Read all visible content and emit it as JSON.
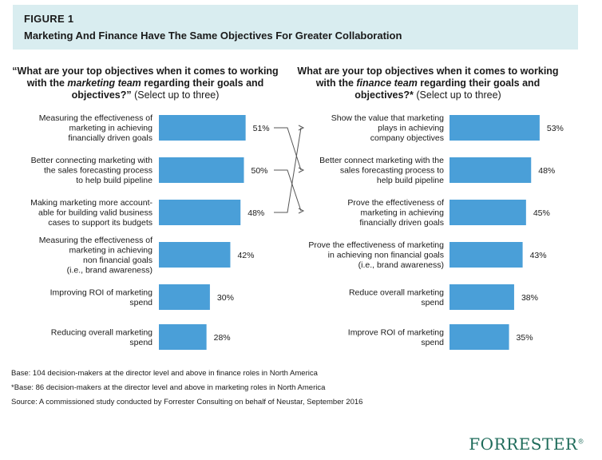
{
  "figure_label": "FIGURE 1",
  "figure_title": "Marketing And Finance Have The Same Objectives For Greater Collaboration",
  "colors": {
    "bar": "#4a9fd8",
    "header_bg": "#d9edf0",
    "logo": "#1e6b5a"
  },
  "left_question": {
    "part1": "“What are your top objectives when it comes to working with the ",
    "emph": "marketing team",
    "part2": " regarding their goals and objectives?”",
    "select": " (Select up to three)"
  },
  "right_question": {
    "part1": "What are your top objectives when it comes to working with the ",
    "emph": "finance team",
    "part2": " regarding their goals and objectives?*",
    "select": " (Select up to three)"
  },
  "chart_data": [
    {
      "type": "bar",
      "orientation": "horizontal",
      "categories": [
        [
          "Measuring the effectiveness of",
          "marketing in achieving",
          "financially driven goals"
        ],
        [
          "Better connecting marketing with",
          "the sales forecasting process",
          "to help build pipeline"
        ],
        [
          "Making marketing more account-",
          "able for building valid business",
          "cases to support its budgets"
        ],
        [
          "Measuring the effectiveness of",
          "marketing in achieving",
          "non financial goals",
          "(i.e., brand awareness)"
        ],
        [
          "Improving ROI of marketing",
          "spend"
        ],
        [
          "Reducing overall marketing",
          "spend"
        ]
      ],
      "values": [
        51,
        50,
        48,
        42,
        30,
        28
      ],
      "value_labels": [
        "51%",
        "50%",
        "48%",
        "42%",
        "30%",
        "28%"
      ],
      "unit": "%"
    },
    {
      "type": "bar",
      "orientation": "horizontal",
      "categories": [
        [
          "Show the value that marketing",
          "plays in achieving",
          "company objectives"
        ],
        [
          "Better connect marketing with the",
          "sales forecasting process to",
          "help build pipeline"
        ],
        [
          "Prove the effectiveness of",
          "marketing in achieving",
          "financially driven goals"
        ],
        [
          "Prove the effectiveness of marketing",
          "in achieving non financial goals",
          "(i.e., brand awareness)"
        ],
        [
          "Reduce overall marketing",
          "spend"
        ],
        [
          "Improve ROI of marketing",
          "spend"
        ]
      ],
      "values": [
        53,
        48,
        45,
        43,
        38,
        35
      ],
      "value_labels": [
        "53%",
        "48%",
        "45%",
        "43%",
        "38%",
        "35%"
      ],
      "unit": "%"
    }
  ],
  "footnotes": [
    "Base: 104 decision-makers at the director level and above in finance roles in North America",
    "*Base: 86 decision-makers at the director level and above in marketing roles in North America",
    "Source: A commissioned study conducted by Forrester Consulting on behalf of Neustar, September 2016"
  ],
  "logo_text": "FORRESTER",
  "logo_mark": "®"
}
